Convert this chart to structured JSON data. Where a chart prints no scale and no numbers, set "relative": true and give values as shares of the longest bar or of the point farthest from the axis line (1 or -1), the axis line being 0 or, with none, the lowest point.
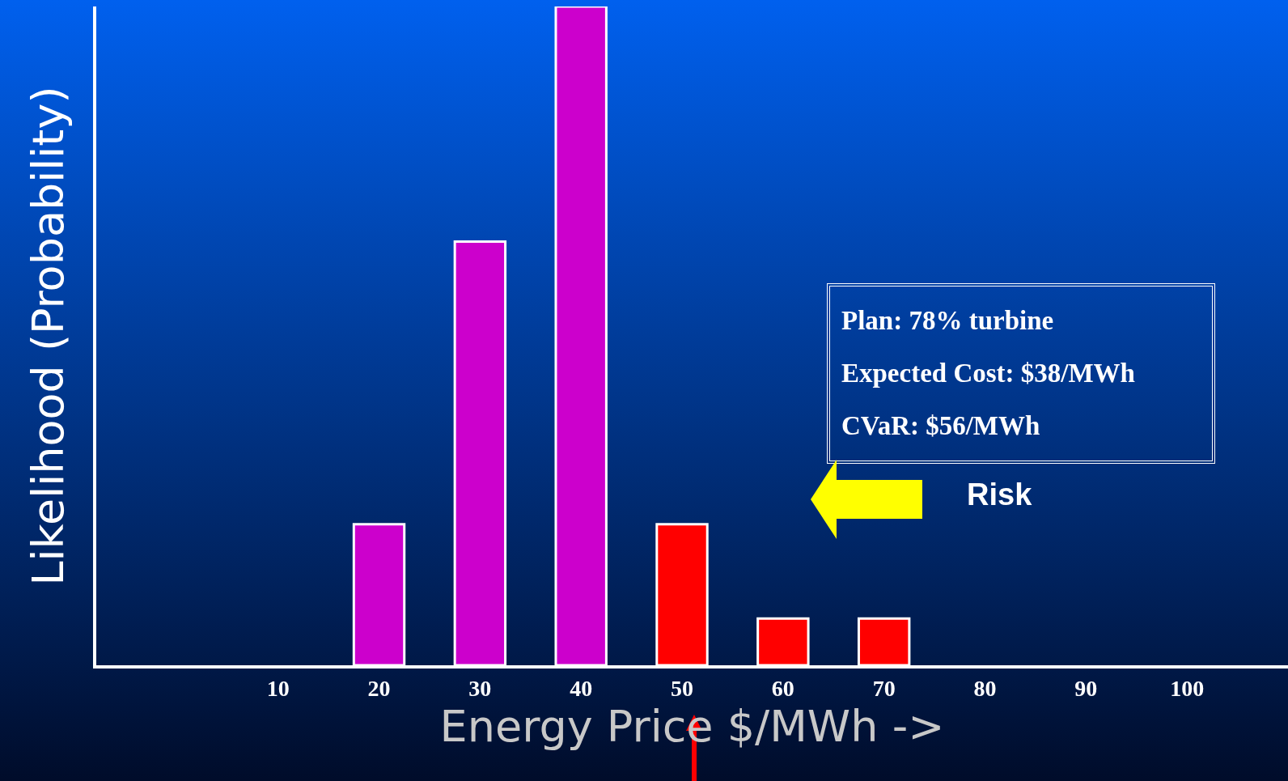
{
  "chart_data": {
    "type": "bar",
    "xlabel": "Energy Price $/MWh ->",
    "ylabel": "Likelihood (Probability)",
    "relative": true,
    "x": [
      20,
      30,
      40,
      50,
      60,
      70
    ],
    "values": [
      0.214,
      0.643,
      1,
      0.214,
      0.071,
      0.071
    ],
    "colors": [
      "#cc00cc",
      "#cc00cc",
      "#cc00cc",
      "#ff0000",
      "#ff0000",
      "#ff0000"
    ],
    "xlim": [
      -8,
      110
    ],
    "xticks": [
      10,
      20,
      30,
      40,
      50,
      60,
      70,
      80,
      90,
      100
    ],
    "grid": false,
    "legend": false,
    "annotations": [
      "Plan: 78% turbine",
      "Expected Cost: $38/MWh",
      "CVaR: $56/MWh",
      "Risk"
    ]
  }
}
